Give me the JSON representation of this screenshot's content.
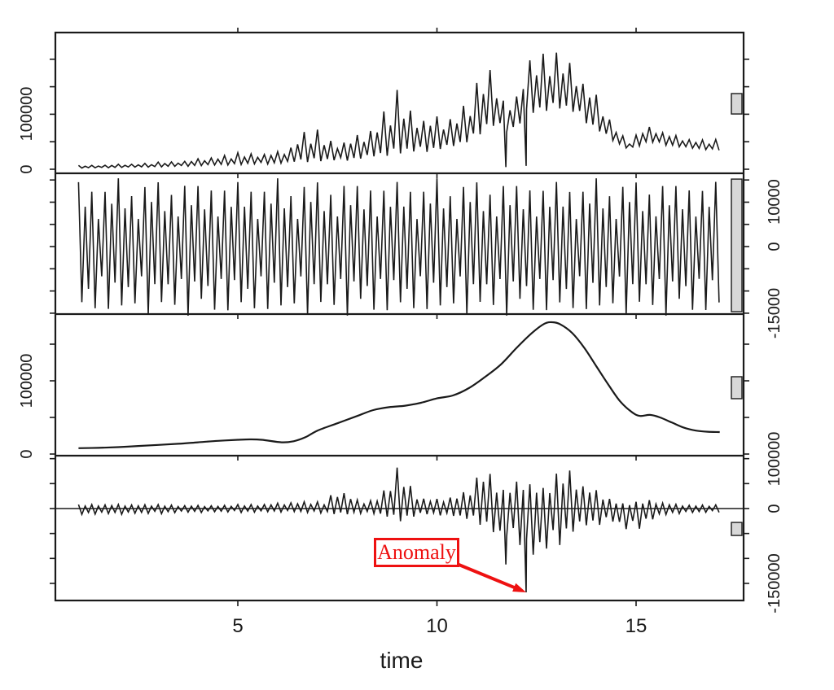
{
  "figure": {
    "background": "#ffffff",
    "line_color": "#1a1a1a",
    "accent_red": "#ee1111",
    "range_bar_fill": "#d8d8d8"
  },
  "chart_data": {
    "type": "line",
    "title": "",
    "xlabel": "time",
    "x_range": [
      1,
      17.1
    ],
    "grid": "off",
    "xticks": [
      {
        "v": 5,
        "label": "5"
      },
      {
        "v": 10,
        "label": "10"
      },
      {
        "v": 15,
        "label": "15"
      }
    ],
    "annotation": {
      "label": "Anomaly",
      "t": 12.24,
      "value": -168000,
      "panel": 3
    },
    "panels": [
      {
        "name": "data",
        "label_side": "left",
        "ylim": [
          -7400,
          248500
        ],
        "yticks": [
          {
            "v": 0,
            "label": "0"
          },
          {
            "v": 50000,
            "label": ""
          },
          {
            "v": 100000,
            "label": "100000"
          },
          {
            "v": 150000,
            "label": ""
          },
          {
            "v": 200000,
            "label": ""
          }
        ],
        "range_bar": {
          "center_frac": 0.506,
          "height_frac": 0.145
        },
        "waveform": {
          "mode": "baseline",
          "cycles_per_unit": 6,
          "peak_weights": [
            1,
            0.62,
            0.85,
            0.55,
            0.75,
            0.65,
            0.92,
            0.58,
            0.8,
            0.6,
            0.88,
            0.52
          ],
          "trough_weights": [
            0.02,
            0.1,
            0.04,
            0.14,
            0,
            0.08,
            0.03,
            0.12,
            0.05,
            0.09,
            0.01,
            0.11
          ],
          "envelope": [
            [
              1.0,
              2000,
              7000
            ],
            [
              1.5,
              2500,
              8500
            ],
            [
              2.0,
              3000,
              9500
            ],
            [
              2.5,
              3500,
              11000
            ],
            [
              3.0,
              4000,
              13000
            ],
            [
              3.5,
              5000,
              16000
            ],
            [
              4.0,
              6000,
              20000
            ],
            [
              4.5,
              7000,
              26000
            ],
            [
              5.0,
              8000,
              30000
            ],
            [
              5.5,
              9000,
              32000
            ],
            [
              6.0,
              10000,
              34000
            ],
            [
              6.3,
              11000,
              42000
            ],
            [
              6.55,
              12000,
              74000
            ],
            [
              6.9,
              13000,
              78000
            ],
            [
              7.2,
              14000,
              60000
            ],
            [
              7.5,
              15000,
              56000
            ],
            [
              7.8,
              16000,
              62000
            ],
            [
              8.1,
              18000,
              68000
            ],
            [
              8.4,
              20000,
              86000
            ],
            [
              8.7,
              23000,
              120000
            ],
            [
              9.0,
              26000,
              144000
            ],
            [
              9.3,
              28000,
              122000
            ],
            [
              9.6,
              30000,
              108000
            ],
            [
              9.9,
              33000,
              103000
            ],
            [
              10.2,
              36000,
              98000
            ],
            [
              10.5,
              40000,
              112000
            ],
            [
              10.8,
              50000,
              135000
            ],
            [
              11.1,
              62000,
              168000
            ],
            [
              11.3,
              72000,
              205000
            ],
            [
              11.5,
              76000,
              172000
            ],
            [
              11.7,
              66000,
              138000
            ],
            [
              11.9,
              72000,
              122000
            ],
            [
              12.1,
              82000,
              152000
            ],
            [
              12.25,
              92000,
              235000
            ],
            [
              12.4,
              96000,
              215000
            ],
            [
              12.6,
              102000,
              222000
            ],
            [
              12.8,
              106000,
              230000
            ],
            [
              13.0,
              110000,
              212000
            ],
            [
              13.2,
              106000,
              216000
            ],
            [
              13.4,
              101000,
              206000
            ],
            [
              13.6,
              92000,
              186000
            ],
            [
              13.8,
              81000,
              161000
            ],
            [
              14.0,
              71000,
              141000
            ],
            [
              14.2,
              61000,
              116000
            ],
            [
              14.4,
              51000,
              91000
            ],
            [
              14.6,
              43000,
              69000
            ],
            [
              14.8,
              37000,
              52000
            ],
            [
              15.0,
              39000,
              62000
            ],
            [
              15.2,
              46000,
              80000
            ],
            [
              15.4,
              48000,
              83000
            ],
            [
              15.6,
              45000,
              76000
            ],
            [
              15.8,
              43000,
              69000
            ],
            [
              16.0,
              41000,
              63000
            ],
            [
              16.3,
              38000,
              58000
            ],
            [
              16.6,
              36000,
              56000
            ],
            [
              16.9,
              35000,
              55000
            ],
            [
              17.1,
              34000,
              53000
            ]
          ],
          "spikes": [
            {
              "t": 11.73,
              "v": 4000
            },
            {
              "t": 12.24,
              "v": 6000
            }
          ]
        }
      },
      {
        "name": "seasonal",
        "label_side": "right",
        "ylim": [
          -15200,
          16500
        ],
        "yticks": [
          {
            "v": 15000,
            "label": ""
          },
          {
            "v": 10000,
            "label": "10000"
          },
          {
            "v": 5000,
            "label": ""
          },
          {
            "v": 0,
            "label": "0"
          },
          {
            "v": -5000,
            "label": ""
          },
          {
            "v": -10000,
            "label": ""
          },
          {
            "v": -15000,
            "label": "-15000"
          }
        ],
        "range_bar": {
          "center_frac": 0.512,
          "height_frac": 0.942
        },
        "waveform": {
          "mode": "pattern",
          "cycles_per_unit": 6,
          "t_start": 1.0,
          "t_end": 17.05,
          "peak_pattern": [
            14500,
            8500,
            12000,
            6500,
            13000,
            9500
          ],
          "trough_pattern": [
            -14800,
            -8000,
            -12500,
            -9000,
            -13500,
            -7000
          ]
        }
      },
      {
        "name": "trend",
        "label_side": "left",
        "ylim": [
          -2200,
          191100
        ],
        "yticks": [
          {
            "v": 0,
            "label": "0"
          },
          {
            "v": 50000,
            "label": ""
          },
          {
            "v": 100000,
            "label": "100000"
          },
          {
            "v": 150000,
            "label": ""
          }
        ],
        "range_bar": {
          "center_frac": 0.52,
          "height_frac": 0.155
        },
        "curve": [
          [
            1.0,
            8000
          ],
          [
            1.5,
            8500
          ],
          [
            2.0,
            9500
          ],
          [
            2.5,
            11000
          ],
          [
            3.0,
            12500
          ],
          [
            3.5,
            14000
          ],
          [
            4.0,
            16000
          ],
          [
            4.5,
            18000
          ],
          [
            5.0,
            19500
          ],
          [
            5.3,
            20000
          ],
          [
            5.6,
            19500
          ],
          [
            6.1,
            16000
          ],
          [
            6.4,
            17500
          ],
          [
            6.7,
            23000
          ],
          [
            7.0,
            32000
          ],
          [
            7.5,
            42000
          ],
          [
            8.0,
            52000
          ],
          [
            8.4,
            60000
          ],
          [
            8.8,
            64000
          ],
          [
            9.2,
            66000
          ],
          [
            9.6,
            70000
          ],
          [
            10.0,
            76000
          ],
          [
            10.4,
            80000
          ],
          [
            10.8,
            90000
          ],
          [
            11.2,
            105000
          ],
          [
            11.6,
            122000
          ],
          [
            12.0,
            145000
          ],
          [
            12.4,
            166000
          ],
          [
            12.7,
            178000
          ],
          [
            12.9,
            180000
          ],
          [
            13.1,
            177000
          ],
          [
            13.4,
            165000
          ],
          [
            13.7,
            145000
          ],
          [
            14.0,
            120000
          ],
          [
            14.3,
            95000
          ],
          [
            14.6,
            72000
          ],
          [
            14.9,
            57000
          ],
          [
            15.1,
            52000
          ],
          [
            15.35,
            53500
          ],
          [
            15.6,
            50000
          ],
          [
            15.9,
            43000
          ],
          [
            16.2,
            36000
          ],
          [
            16.5,
            32000
          ],
          [
            16.8,
            30500
          ],
          [
            17.1,
            30000
          ]
        ]
      },
      {
        "name": "remainder",
        "label_side": "right",
        "zero_line": true,
        "ylim": [
          -184300,
          106000
        ],
        "yticks": [
          {
            "v": 100000,
            "label": "100000"
          },
          {
            "v": 50000,
            "label": ""
          },
          {
            "v": 0,
            "label": "0"
          },
          {
            "v": -50000,
            "label": ""
          },
          {
            "v": -100000,
            "label": ""
          },
          {
            "v": -150000,
            "label": "-150000"
          }
        ],
        "range_bar": {
          "center_frac": 0.506,
          "height_frac": 0.09
        },
        "waveform": {
          "mode": "zero",
          "cycles_per_unit": 6,
          "peak_weights": [
            1,
            0.6,
            0.85,
            0.5,
            0.75,
            0.65,
            0.9,
            0.55,
            0.8,
            0.62,
            0.87,
            0.58
          ],
          "trough_weights": [
            0.95,
            0.6,
            0.82,
            0.52,
            0.75,
            0.6,
            0.9,
            0.55,
            0.78,
            0.65,
            0.85,
            0.5
          ],
          "envelope": [
            [
              1.0,
              -12000,
              8000
            ],
            [
              1.5,
              -14000,
              10000
            ],
            [
              2.0,
              -13000,
              9000
            ],
            [
              2.5,
              -12000,
              9000
            ],
            [
              3.0,
              -11000,
              8000
            ],
            [
              3.5,
              -10000,
              8000
            ],
            [
              4.0,
              -9000,
              7000
            ],
            [
              4.5,
              -8000,
              7000
            ],
            [
              5.0,
              -8000,
              8000
            ],
            [
              5.5,
              -9000,
              10000
            ],
            [
              6.0,
              -8000,
              12000
            ],
            [
              6.3,
              -7000,
              14000
            ],
            [
              6.6,
              -9000,
              16000
            ],
            [
              6.9,
              -10000,
              14000
            ],
            [
              7.2,
              -9000,
              12000
            ],
            [
              7.45,
              -14000,
              48000
            ],
            [
              7.7,
              -16000,
              40000
            ],
            [
              7.95,
              -12000,
              20000
            ],
            [
              8.2,
              -10000,
              16000
            ],
            [
              8.5,
              -14000,
              24000
            ],
            [
              8.8,
              -20000,
              56000
            ],
            [
              9.0,
              -28000,
              82000
            ],
            [
              9.2,
              -25000,
              70000
            ],
            [
              9.4,
              -20000,
              45000
            ],
            [
              9.6,
              -16000,
              28000
            ],
            [
              9.9,
              -14000,
              20000
            ],
            [
              10.2,
              -16000,
              24000
            ],
            [
              10.5,
              -20000,
              32000
            ],
            [
              10.8,
              -25000,
              42000
            ],
            [
              11.0,
              -30000,
              62000
            ],
            [
              11.2,
              -40000,
              95000
            ],
            [
              11.4,
              -55000,
              75000
            ],
            [
              11.6,
              -88000,
              52000
            ],
            [
              11.8,
              -70000,
              46000
            ],
            [
              12.0,
              -62000,
              60000
            ],
            [
              12.2,
              -108000,
              70000
            ],
            [
              12.4,
              -120000,
              56000
            ],
            [
              12.6,
              -102000,
              46000
            ],
            [
              12.8,
              -92000,
              50000
            ],
            [
              13.0,
              -82000,
              70000
            ],
            [
              13.2,
              -70000,
              86000
            ],
            [
              13.35,
              -60000,
              90000
            ],
            [
              13.5,
              -52000,
              76000
            ],
            [
              13.7,
              -46000,
              56000
            ],
            [
              13.9,
              -40000,
              46000
            ],
            [
              14.1,
              -36000,
              36000
            ],
            [
              14.3,
              -30000,
              26000
            ],
            [
              14.5,
              -36000,
              16000
            ],
            [
              14.7,
              -48000,
              11000
            ],
            [
              14.9,
              -50000,
              12000
            ],
            [
              15.1,
              -42000,
              15000
            ],
            [
              15.3,
              -31000,
              20000
            ],
            [
              15.5,
              -23000,
              18000
            ],
            [
              15.7,
              -17000,
              14000
            ],
            [
              15.9,
              -13000,
              10000
            ],
            [
              16.1,
              -11000,
              9000
            ],
            [
              16.4,
              -10000,
              8000
            ],
            [
              16.7,
              -9000,
              8000
            ],
            [
              17.1,
              -8000,
              7000
            ]
          ],
          "spikes": [
            {
              "t": 11.73,
              "v": -112000
            },
            {
              "t": 12.24,
              "v": -168000
            }
          ]
        }
      }
    ]
  }
}
